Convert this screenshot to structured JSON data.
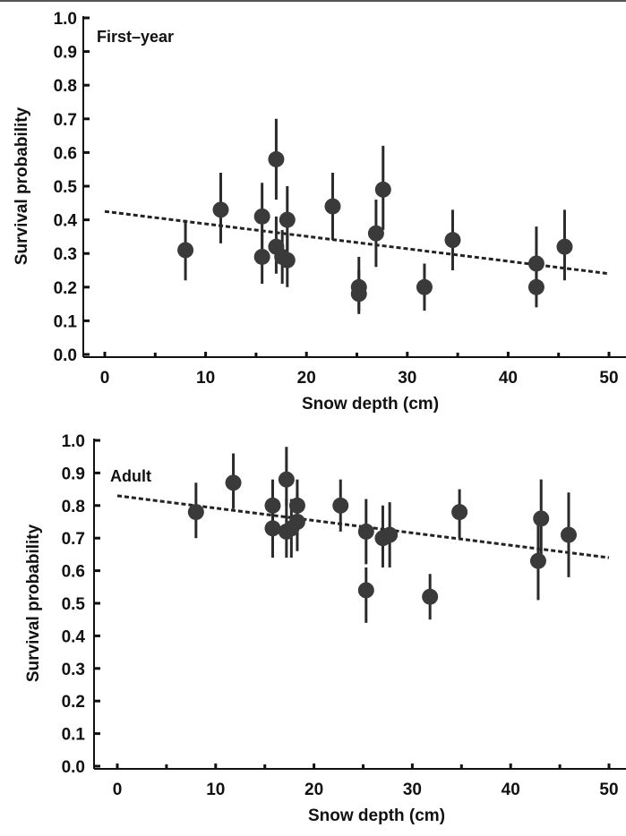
{
  "chart_data": [
    {
      "type": "scatter",
      "title": "",
      "panel_label": "First–year",
      "xlabel": "Snow depth (cm)",
      "ylabel": "Survival probability",
      "xlim": [
        0,
        50
      ],
      "ylim": [
        0.0,
        1.0
      ],
      "x_ticks": [
        "0",
        "10",
        "20",
        "30",
        "40",
        "50"
      ],
      "y_ticks": [
        "0.0",
        "0.1",
        "0.2",
        "0.3",
        "0.4",
        "0.5",
        "0.6",
        "0.7",
        "0.8",
        "0.9",
        "1.0"
      ],
      "grid": false,
      "trend_line": {
        "style": "dashed",
        "x": [
          0,
          50
        ],
        "y": [
          0.425,
          0.24
        ]
      },
      "points": [
        {
          "x": 8.0,
          "y": 0.31,
          "lo": 0.22,
          "hi": 0.4
        },
        {
          "x": 11.5,
          "y": 0.43,
          "lo": 0.33,
          "hi": 0.54
        },
        {
          "x": 15.6,
          "y": 0.41,
          "lo": 0.31,
          "hi": 0.51
        },
        {
          "x": 15.6,
          "y": 0.29,
          "lo": 0.21,
          "hi": 0.37
        },
        {
          "x": 17.0,
          "y": 0.58,
          "lo": 0.46,
          "hi": 0.7
        },
        {
          "x": 17.0,
          "y": 0.32,
          "lo": 0.24,
          "hi": 0.41
        },
        {
          "x": 17.6,
          "y": 0.29,
          "lo": 0.21,
          "hi": 0.37
        },
        {
          "x": 18.1,
          "y": 0.4,
          "lo": 0.3,
          "hi": 0.5
        },
        {
          "x": 18.1,
          "y": 0.28,
          "lo": 0.2,
          "hi": 0.36
        },
        {
          "x": 22.6,
          "y": 0.44,
          "lo": 0.34,
          "hi": 0.54
        },
        {
          "x": 25.2,
          "y": 0.2,
          "lo": 0.13,
          "hi": 0.29
        },
        {
          "x": 25.2,
          "y": 0.18,
          "lo": 0.12,
          "hi": 0.25
        },
        {
          "x": 26.9,
          "y": 0.36,
          "lo": 0.26,
          "hi": 0.46
        },
        {
          "x": 27.6,
          "y": 0.49,
          "lo": 0.37,
          "hi": 0.62
        },
        {
          "x": 31.7,
          "y": 0.2,
          "lo": 0.13,
          "hi": 0.27
        },
        {
          "x": 34.5,
          "y": 0.34,
          "lo": 0.25,
          "hi": 0.43
        },
        {
          "x": 42.8,
          "y": 0.27,
          "lo": 0.18,
          "hi": 0.38
        },
        {
          "x": 42.8,
          "y": 0.2,
          "lo": 0.14,
          "hi": 0.27
        },
        {
          "x": 45.6,
          "y": 0.32,
          "lo": 0.22,
          "hi": 0.43
        }
      ]
    },
    {
      "type": "scatter",
      "title": "",
      "panel_label": "Adult",
      "xlabel": "Snow depth (cm)",
      "ylabel": "Survival probability",
      "xlim": [
        0,
        50
      ],
      "ylim": [
        0.0,
        1.0
      ],
      "x_ticks": [
        "0",
        "10",
        "20",
        "30",
        "40",
        "50"
      ],
      "y_ticks": [
        "0.0",
        "0.1",
        "0.2",
        "0.3",
        "0.4",
        "0.5",
        "0.6",
        "0.7",
        "0.8",
        "0.9",
        "1.0"
      ],
      "grid": false,
      "trend_line": {
        "style": "dashed",
        "x": [
          0,
          50
        ],
        "y": [
          0.83,
          0.64
        ]
      },
      "points": [
        {
          "x": 8.0,
          "y": 0.78,
          "lo": 0.7,
          "hi": 0.87
        },
        {
          "x": 11.8,
          "y": 0.87,
          "lo": 0.79,
          "hi": 0.96
        },
        {
          "x": 15.8,
          "y": 0.8,
          "lo": 0.71,
          "hi": 0.88
        },
        {
          "x": 15.8,
          "y": 0.73,
          "lo": 0.64,
          "hi": 0.82
        },
        {
          "x": 17.2,
          "y": 0.88,
          "lo": 0.8,
          "hi": 0.98
        },
        {
          "x": 17.2,
          "y": 0.72,
          "lo": 0.64,
          "hi": 0.82
        },
        {
          "x": 17.7,
          "y": 0.73,
          "lo": 0.64,
          "hi": 0.82
        },
        {
          "x": 18.3,
          "y": 0.8,
          "lo": 0.71,
          "hi": 0.88
        },
        {
          "x": 18.3,
          "y": 0.75,
          "lo": 0.66,
          "hi": 0.84
        },
        {
          "x": 22.7,
          "y": 0.8,
          "lo": 0.72,
          "hi": 0.88
        },
        {
          "x": 25.3,
          "y": 0.72,
          "lo": 0.62,
          "hi": 0.82
        },
        {
          "x": 25.3,
          "y": 0.54,
          "lo": 0.44,
          "hi": 0.61
        },
        {
          "x": 27.0,
          "y": 0.7,
          "lo": 0.61,
          "hi": 0.8
        },
        {
          "x": 27.7,
          "y": 0.71,
          "lo": 0.61,
          "hi": 0.81
        },
        {
          "x": 31.8,
          "y": 0.52,
          "lo": 0.45,
          "hi": 0.59
        },
        {
          "x": 34.8,
          "y": 0.78,
          "lo": 0.7,
          "hi": 0.85
        },
        {
          "x": 42.8,
          "y": 0.63,
          "lo": 0.51,
          "hi": 0.76
        },
        {
          "x": 43.1,
          "y": 0.76,
          "lo": 0.64,
          "hi": 0.88
        },
        {
          "x": 45.9,
          "y": 0.71,
          "lo": 0.58,
          "hi": 0.84
        }
      ]
    }
  ],
  "colors": {
    "marker": "#3a3a3a",
    "errorbar": "#2a2a2a",
    "axis": "#111111",
    "trend": "#222222"
  }
}
